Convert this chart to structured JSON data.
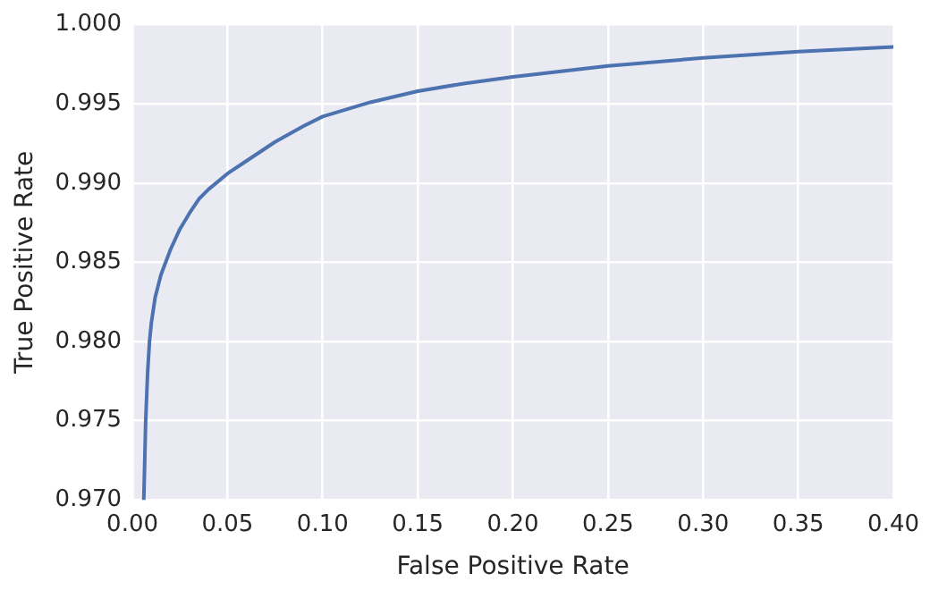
{
  "chart_data": {
    "type": "line",
    "xlabel": "False Positive Rate",
    "ylabel": "True Positive Rate",
    "x": [
      0.006,
      0.007,
      0.008,
      0.009,
      0.01,
      0.012,
      0.015,
      0.02,
      0.025,
      0.03,
      0.035,
      0.04,
      0.05,
      0.06,
      0.075,
      0.09,
      0.1,
      0.125,
      0.15,
      0.175,
      0.2,
      0.25,
      0.3,
      0.35,
      0.4
    ],
    "series": [
      {
        "color": "#4c72b0",
        "values": [
          0.97,
          0.975,
          0.978,
          0.98,
          0.9812,
          0.9828,
          0.9842,
          0.9858,
          0.9871,
          0.9881,
          0.989,
          0.9896,
          0.9906,
          0.9914,
          0.9926,
          0.9936,
          0.9942,
          0.9951,
          0.9958,
          0.9963,
          0.9967,
          0.9974,
          0.9979,
          0.9983,
          0.9986
        ]
      }
    ],
    "xlim": [
      0,
      0.4
    ],
    "xticks": [
      {
        "value": 0,
        "label": "0.00"
      },
      {
        "value": 0.05,
        "label": "0.05"
      },
      {
        "value": 0.1,
        "label": "0.10"
      },
      {
        "value": 0.15,
        "label": "0.15"
      },
      {
        "value": 0.2,
        "label": "0.20"
      },
      {
        "value": 0.25,
        "label": "0.25"
      },
      {
        "value": 0.3,
        "label": "0.30"
      },
      {
        "value": 0.35,
        "label": "0.35"
      },
      {
        "value": 0.4,
        "label": "0.40"
      }
    ],
    "ylim": [
      0.97,
      1.0
    ],
    "yticks": [
      {
        "value": 0.97,
        "label": "0.970"
      },
      {
        "value": 0.975,
        "label": "0.975"
      },
      {
        "value": 0.98,
        "label": "0.980"
      },
      {
        "value": 0.985,
        "label": "0.985"
      },
      {
        "value": 0.99,
        "label": "0.990"
      },
      {
        "value": 0.995,
        "label": "0.995"
      },
      {
        "value": 1.0,
        "label": "1.000"
      }
    ],
    "grid": true,
    "legend": false,
    "marker": "none",
    "line_style": "solid"
  }
}
